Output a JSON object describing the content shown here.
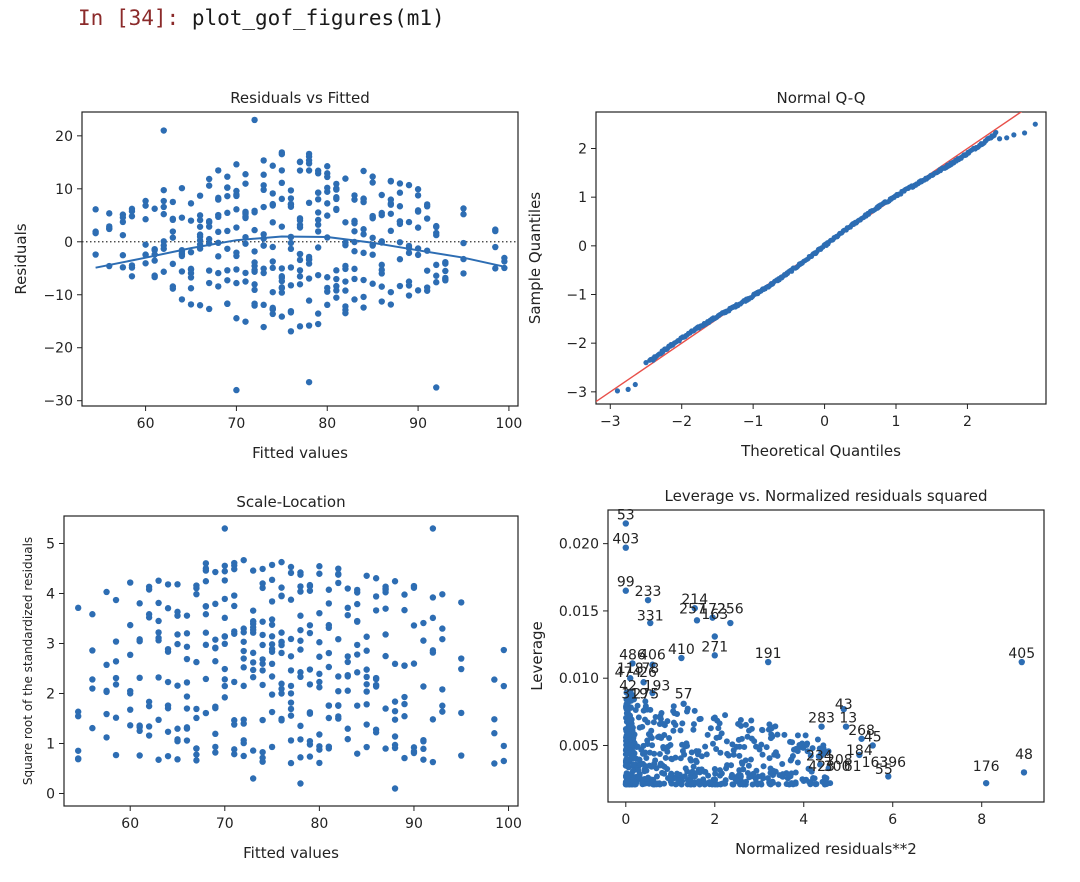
{
  "cell": {
    "prompt_in": "In",
    "prompt_num": "[34]:",
    "code": "plot_gof_figures(m1)"
  },
  "colors": {
    "point": "#2d6db3",
    "point_dark": "#1f3f6e",
    "line": "#2d6db3",
    "ref_line": "#e8504a",
    "dotted": "#333333"
  },
  "chart_data": [
    {
      "id": "rvf",
      "type": "scatter",
      "title": "Residuals vs Fitted",
      "xlabel": "Fitted values",
      "ylabel": "Residuals",
      "xlim": [
        53,
        101
      ],
      "ylim": [
        -31,
        24.5
      ],
      "xticks": [
        60,
        70,
        80,
        90,
        100
      ],
      "yticks": [
        -30,
        -20,
        -10,
        0,
        10,
        20
      ],
      "xtick_labels": [
        "60",
        "70",
        "80",
        "90",
        "100"
      ],
      "ytick_labels": [
        "−30",
        "−20",
        "−10",
        "0",
        "10",
        "20"
      ],
      "reference_line": {
        "y": 0,
        "style": "dotted"
      },
      "lowess": [
        [
          54.5,
          -4.9
        ],
        [
          60,
          -3.0
        ],
        [
          65,
          -1.2
        ],
        [
          70,
          0.3
        ],
        [
          75,
          1.0
        ],
        [
          80,
          0.9
        ],
        [
          85,
          -0.2
        ],
        [
          90,
          -1.6
        ],
        [
          95,
          -3.0
        ],
        [
          99.5,
          -4.7
        ]
      ],
      "x_columns": [
        54.5,
        56,
        57.5,
        58.5,
        60,
        61,
        62,
        63,
        64,
        65,
        66,
        67,
        68,
        69,
        70,
        71,
        72,
        73,
        74,
        75,
        76,
        77,
        78,
        79,
        80,
        81,
        82,
        83,
        84,
        85,
        86,
        87,
        88,
        89,
        90,
        91,
        92,
        93,
        95,
        98.5,
        99.5
      ],
      "extra_points": [
        [
          70,
          -28
        ],
        [
          78,
          -26.5
        ],
        [
          92,
          -27.5
        ],
        [
          72,
          23
        ],
        [
          62,
          21
        ]
      ]
    },
    {
      "id": "qq",
      "type": "line",
      "title": "Normal Q-Q",
      "xlabel": "Theoretical Quantiles",
      "ylabel": "Sample Quantiles",
      "xlim": [
        -3.2,
        3.1
      ],
      "ylim": [
        -3.25,
        2.75
      ],
      "xticks": [
        -3,
        -2,
        -1,
        0,
        1,
        2
      ],
      "yticks": [
        -3,
        -2,
        -1,
        0,
        1,
        2
      ],
      "xtick_labels": [
        "−3",
        "−2",
        "−1",
        "0",
        "1",
        "2"
      ],
      "ytick_labels": [
        "−3",
        "−2",
        "−1",
        "0",
        "1",
        "2"
      ],
      "reference_line": {
        "from": [
          -3.2,
          -3.2
        ],
        "to": [
          3.1,
          3.1
        ]
      },
      "sample_points": [
        [
          -2.9,
          -2.98
        ],
        [
          -2.75,
          -2.95
        ],
        [
          -2.65,
          -2.85
        ],
        [
          -2.5,
          -2.4
        ],
        [
          -2.4,
          -2.35
        ],
        [
          2.45,
          2.2
        ],
        [
          2.55,
          2.22
        ],
        [
          2.65,
          2.28
        ],
        [
          2.8,
          2.32
        ],
        [
          2.95,
          2.5
        ]
      ]
    },
    {
      "id": "sl",
      "type": "scatter",
      "title": "Scale-Location",
      "xlabel": "Fitted values",
      "ylabel": "Square root of the standardized residuals",
      "xlim": [
        53,
        101
      ],
      "ylim": [
        -0.25,
        5.55
      ],
      "xticks": [
        60,
        70,
        80,
        90,
        100
      ],
      "yticks": [
        0,
        1,
        2,
        3,
        4,
        5
      ],
      "xtick_labels": [
        "60",
        "70",
        "80",
        "90",
        "100"
      ],
      "ytick_labels": [
        "0",
        "1",
        "2",
        "3",
        "4",
        "5"
      ],
      "x_columns": [
        54.5,
        56,
        57.5,
        58.5,
        60,
        61,
        62,
        63,
        64,
        65,
        66,
        67,
        68,
        69,
        70,
        71,
        72,
        73,
        74,
        75,
        76,
        77,
        78,
        79,
        80,
        81,
        82,
        83,
        84,
        85,
        86,
        87,
        88,
        89,
        90,
        91,
        92,
        93,
        95,
        98.5,
        99.5
      ],
      "extra_points": [
        [
          70,
          5.3
        ],
        [
          92,
          5.3
        ],
        [
          73,
          0.3
        ],
        [
          78,
          0.2
        ],
        [
          88,
          0.1
        ],
        [
          98.5,
          0.6
        ],
        [
          99.5,
          0.65
        ],
        [
          54.5,
          0.7
        ]
      ]
    },
    {
      "id": "lev",
      "type": "scatter",
      "title": "Leverage vs. Normalized residuals squared",
      "xlabel": "Normalized residuals**2",
      "ylabel": "Leverage",
      "xlim": [
        -0.4,
        9.4
      ],
      "ylim": [
        0.0008,
        0.0225
      ],
      "xticks": [
        0,
        2,
        4,
        6,
        8
      ],
      "yticks": [
        0.005,
        0.01,
        0.015,
        0.02
      ],
      "xtick_labels": [
        "0",
        "2",
        "4",
        "6",
        "8"
      ],
      "ytick_labels": [
        "0.005",
        "0.010",
        "0.015",
        "0.020"
      ],
      "annotations": [
        {
          "text": "53",
          "x": 0.0,
          "y": 0.0215
        },
        {
          "text": "403",
          "x": 0.0,
          "y": 0.0197
        },
        {
          "text": "99",
          "x": 0.0,
          "y": 0.0165
        },
        {
          "text": "233",
          "x": 0.5,
          "y": 0.0158
        },
        {
          "text": "214",
          "x": 1.55,
          "y": 0.0152
        },
        {
          "text": "257",
          "x": 1.5,
          "y": 0.0145
        },
        {
          "text": "172",
          "x": 1.95,
          "y": 0.0145
        },
        {
          "text": "256",
          "x": 2.35,
          "y": 0.0145
        },
        {
          "text": "331",
          "x": 0.55,
          "y": 0.014
        },
        {
          "text": "163",
          "x": 2.0,
          "y": 0.0141
        },
        {
          "text": "410",
          "x": 1.25,
          "y": 0.0115
        },
        {
          "text": "271",
          "x": 2.0,
          "y": 0.0117
        },
        {
          "text": "191",
          "x": 3.2,
          "y": 0.0112
        },
        {
          "text": "405",
          "x": 8.9,
          "y": 0.0112
        },
        {
          "text": "486",
          "x": 0.15,
          "y": 0.0111
        },
        {
          "text": "406",
          "x": 0.6,
          "y": 0.0111
        },
        {
          "text": "118",
          "x": 0.1,
          "y": 0.0101
        },
        {
          "text": "78",
          "x": 0.55,
          "y": 0.0101
        },
        {
          "text": "474",
          "x": 0.05,
          "y": 0.0098
        },
        {
          "text": "26",
          "x": 0.5,
          "y": 0.0098
        },
        {
          "text": "42",
          "x": 0.05,
          "y": 0.0088
        },
        {
          "text": "193",
          "x": 0.7,
          "y": 0.0088
        },
        {
          "text": "319",
          "x": 0.2,
          "y": 0.0082
        },
        {
          "text": "275",
          "x": 0.45,
          "y": 0.0082
        },
        {
          "text": "57",
          "x": 1.3,
          "y": 0.0082
        },
        {
          "text": "43",
          "x": 4.9,
          "y": 0.0074
        },
        {
          "text": "283",
          "x": 4.4,
          "y": 0.0064
        },
        {
          "text": "13",
          "x": 5.0,
          "y": 0.0064
        },
        {
          "text": "268",
          "x": 5.3,
          "y": 0.0055
        },
        {
          "text": "45",
          "x": 5.55,
          "y": 0.005
        },
        {
          "text": "184",
          "x": 5.25,
          "y": 0.004
        },
        {
          "text": "234",
          "x": 4.35,
          "y": 0.0036
        },
        {
          "text": "208",
          "x": 4.8,
          "y": 0.0033
        },
        {
          "text": "423",
          "x": 4.4,
          "y": 0.0028
        },
        {
          "text": "300",
          "x": 4.75,
          "y": 0.0028
        },
        {
          "text": "61",
          "x": 5.1,
          "y": 0.0028
        },
        {
          "text": "163",
          "x": 5.6,
          "y": 0.0031
        },
        {
          "text": "396",
          "x": 6.0,
          "y": 0.0031
        },
        {
          "text": "55",
          "x": 5.8,
          "y": 0.0026
        },
        {
          "text": "176",
          "x": 8.1,
          "y": 0.0028
        },
        {
          "text": "48",
          "x": 8.95,
          "y": 0.0037
        }
      ],
      "points": [
        [
          0.0,
          0.0215
        ],
        [
          0.0,
          0.0197
        ],
        [
          0.0,
          0.0165
        ],
        [
          0.5,
          0.0158
        ],
        [
          0.55,
          0.0141
        ],
        [
          1.55,
          0.0152
        ],
        [
          1.6,
          0.0143
        ],
        [
          1.95,
          0.0145
        ],
        [
          2.35,
          0.0141
        ],
        [
          2.0,
          0.0131
        ],
        [
          1.25,
          0.0115
        ],
        [
          2.0,
          0.0117
        ],
        [
          3.2,
          0.0112
        ],
        [
          8.9,
          0.0112
        ],
        [
          4.9,
          0.0077
        ],
        [
          4.4,
          0.0064
        ],
        [
          4.95,
          0.0064
        ],
        [
          5.3,
          0.0055
        ],
        [
          5.55,
          0.005
        ],
        [
          5.25,
          0.0043
        ],
        [
          8.1,
          0.0022
        ],
        [
          8.95,
          0.003
        ],
        [
          5.9,
          0.0027
        ],
        [
          0.15,
          0.0111
        ],
        [
          0.6,
          0.011
        ],
        [
          0.1,
          0.01
        ],
        [
          0.4,
          0.0097
        ],
        [
          0.1,
          0.009
        ],
        [
          0.6,
          0.0089
        ],
        [
          0.05,
          0.0082
        ],
        [
          1.3,
          0.0081
        ]
      ]
    }
  ]
}
